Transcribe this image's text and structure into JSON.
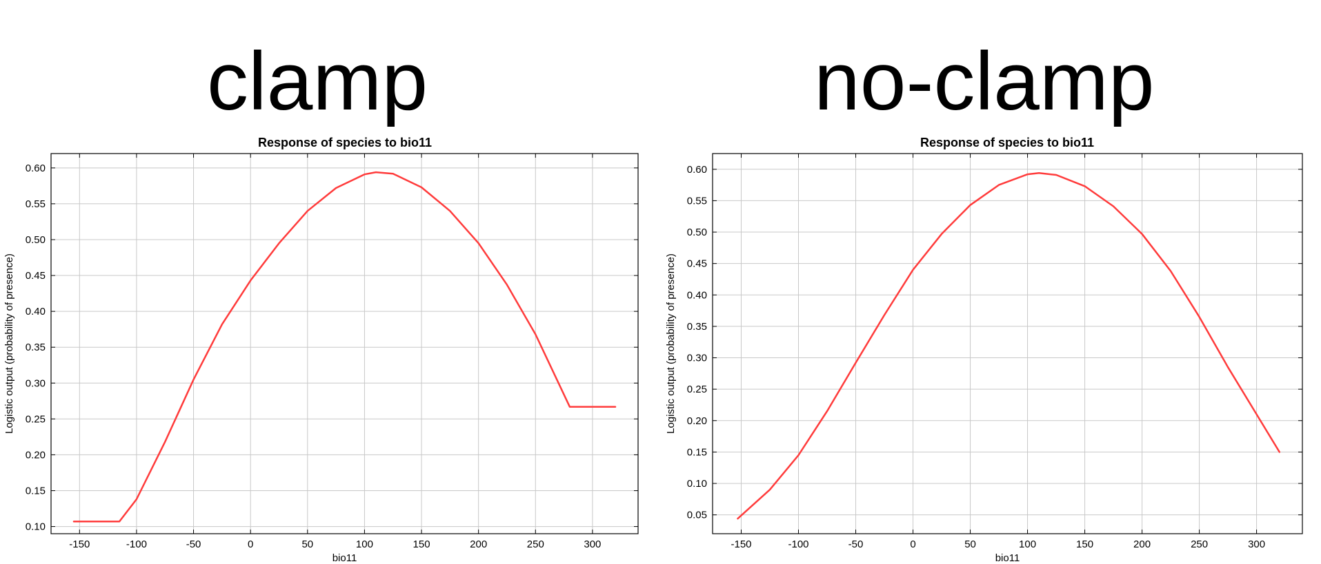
{
  "headings": {
    "left": "clamp",
    "right": "no-clamp"
  },
  "colors": {
    "line": "#ff3b3b",
    "grid": "#c8c8c8",
    "axis": "#000000"
  },
  "chart_data": [
    {
      "type": "line",
      "title": "Response of species to bio11",
      "xlabel": "bio11",
      "ylabel": "Logistic output (probability of presence)",
      "xlim": [
        -175,
        340
      ],
      "ylim": [
        0.09,
        0.62
      ],
      "xticks": [
        -150,
        -100,
        -50,
        0,
        50,
        100,
        150,
        200,
        250,
        300
      ],
      "yticks": [
        "0.10",
        "0.15",
        "0.20",
        "0.25",
        "0.30",
        "0.35",
        "0.40",
        "0.45",
        "0.50",
        "0.55",
        "0.60"
      ],
      "grid": true,
      "x": [
        -155,
        -115,
        -100,
        -75,
        -50,
        -25,
        0,
        25,
        50,
        75,
        100,
        110,
        125,
        150,
        175,
        200,
        225,
        250,
        280,
        320
      ],
      "y": [
        0.107,
        0.107,
        0.138,
        0.218,
        0.305,
        0.382,
        0.443,
        0.495,
        0.54,
        0.572,
        0.591,
        0.594,
        0.592,
        0.573,
        0.54,
        0.495,
        0.437,
        0.368,
        0.267,
        0.267
      ]
    },
    {
      "type": "line",
      "title": "Response of species to bio11",
      "xlabel": "bio11",
      "ylabel": "Logistic output (probability of presence)",
      "xlim": [
        -175,
        340
      ],
      "ylim": [
        0.02,
        0.625
      ],
      "xticks": [
        -150,
        -100,
        -50,
        0,
        50,
        100,
        150,
        200,
        250,
        300
      ],
      "yticks": [
        "0.05",
        "0.10",
        "0.15",
        "0.20",
        "0.25",
        "0.30",
        "0.35",
        "0.40",
        "0.45",
        "0.50",
        "0.55",
        "0.60"
      ],
      "grid": true,
      "x": [
        -153,
        -125,
        -100,
        -75,
        -50,
        -25,
        0,
        25,
        50,
        75,
        100,
        110,
        125,
        150,
        175,
        200,
        225,
        250,
        275,
        300,
        320
      ],
      "y": [
        0.044,
        0.09,
        0.145,
        0.215,
        0.292,
        0.368,
        0.44,
        0.497,
        0.543,
        0.575,
        0.592,
        0.594,
        0.591,
        0.573,
        0.541,
        0.497,
        0.438,
        0.365,
        0.285,
        0.21,
        0.15
      ]
    }
  ]
}
